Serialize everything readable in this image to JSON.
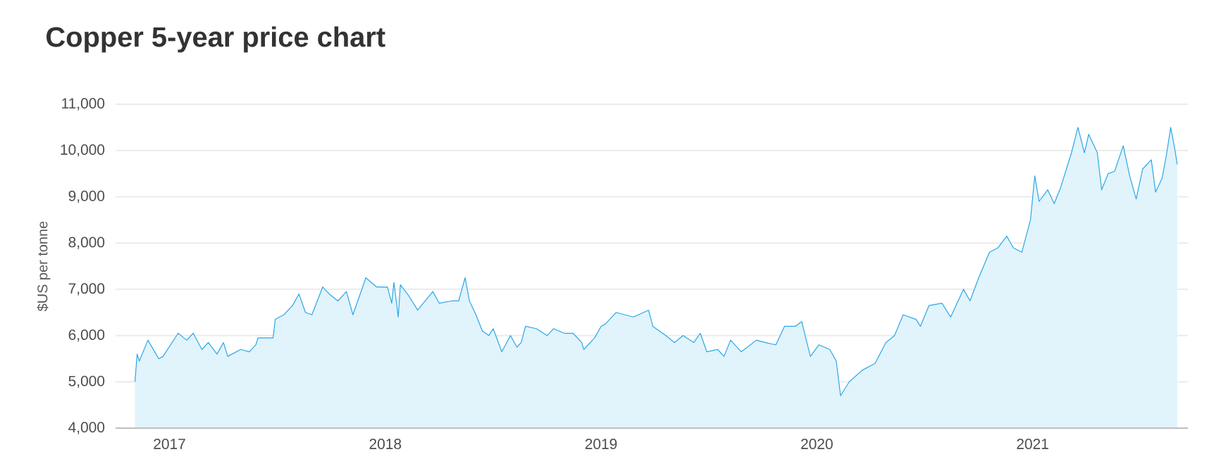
{
  "chart_data": {
    "type": "area",
    "title": "Copper 5-year price chart",
    "ylabel": "$US per tonne",
    "x": [
      2016.84,
      2016.85,
      2016.86,
      2016.9,
      2016.95,
      2016.97,
      2017.04,
      2017.08,
      2017.11,
      2017.15,
      2017.18,
      2017.22,
      2017.25,
      2017.27,
      2017.33,
      2017.37,
      2017.4,
      2017.41,
      2017.48,
      2017.49,
      2017.53,
      2017.57,
      2017.6,
      2017.63,
      2017.66,
      2017.71,
      2017.74,
      2017.78,
      2017.82,
      2017.85,
      2017.91,
      2017.96,
      2018.01,
      2018.03,
      2018.04,
      2018.06,
      2018.07,
      2018.11,
      2018.15,
      2018.22,
      2018.25,
      2018.31,
      2018.34,
      2018.37,
      2018.39,
      2018.42,
      2018.45,
      2018.48,
      2018.5,
      2018.54,
      2018.58,
      2018.61,
      2018.63,
      2018.65,
      2018.7,
      2018.75,
      2018.78,
      2018.83,
      2018.87,
      2018.91,
      2018.92,
      2018.97,
      2019.0,
      2019.02,
      2019.07,
      2019.11,
      2019.15,
      2019.22,
      2019.24,
      2019.3,
      2019.34,
      2019.38,
      2019.43,
      2019.46,
      2019.49,
      2019.54,
      2019.57,
      2019.6,
      2019.65,
      2019.72,
      2019.76,
      2019.81,
      2019.85,
      2019.9,
      2019.93,
      2019.97,
      2020.01,
      2020.06,
      2020.09,
      2020.11,
      2020.15,
      2020.21,
      2020.27,
      2020.32,
      2020.36,
      2020.4,
      2020.46,
      2020.48,
      2020.52,
      2020.58,
      2020.62,
      2020.68,
      2020.71,
      2020.75,
      2020.8,
      2020.84,
      2020.88,
      2020.91,
      2020.95,
      2020.99,
      2021.01,
      2021.03,
      2021.07,
      2021.1,
      2021.13,
      2021.18,
      2021.21,
      2021.24,
      2021.26,
      2021.3,
      2021.32,
      2021.35,
      2021.38,
      2021.42,
      2021.45,
      2021.48,
      2021.51,
      2021.55,
      2021.57,
      2021.6,
      2021.62,
      2021.64,
      2021.66,
      2021.67
    ],
    "series": [
      {
        "color": "#2aa7e6",
        "values": [
          5000,
          5600,
          5450,
          5900,
          5500,
          5550,
          6050,
          5900,
          6050,
          5700,
          5850,
          5600,
          5850,
          5550,
          5700,
          5650,
          5800,
          5950,
          5950,
          6350,
          6450,
          6650,
          6900,
          6500,
          6450,
          7050,
          6900,
          6750,
          6950,
          6450,
          7250,
          7050,
          7050,
          6700,
          7150,
          6400,
          7100,
          6850,
          6550,
          6950,
          6700,
          6750,
          6750,
          7250,
          6750,
          6450,
          6100,
          6000,
          6150,
          5650,
          6000,
          5750,
          5850,
          6200,
          6150,
          6000,
          6150,
          6050,
          6050,
          5850,
          5700,
          5950,
          6200,
          6250,
          6500,
          6450,
          6400,
          6550,
          6200,
          6000,
          5850,
          6000,
          5850,
          6050,
          5650,
          5700,
          5550,
          5900,
          5650,
          5900,
          5850,
          5800,
          6200,
          6200,
          6300,
          5550,
          5800,
          5700,
          5450,
          4700,
          5000,
          5250,
          5400,
          5850,
          6000,
          6450,
          6350,
          6200,
          6650,
          6700,
          6400,
          7000,
          6750,
          7250,
          7800,
          7900,
          8150,
          7900,
          7800,
          8500,
          9450,
          8900,
          9150,
          8850,
          9200,
          9950,
          10500,
          9950,
          10350,
          9950,
          9150,
          9500,
          9550,
          10100,
          9450,
          8950,
          9600,
          9800,
          9100,
          9400,
          9900,
          10500,
          10000,
          9700
        ]
      }
    ],
    "xlim": [
      2016.75,
      2021.72
    ],
    "xticks": [
      2017,
      2018,
      2019,
      2020,
      2021
    ],
    "ylim": [
      4000,
      11000
    ],
    "yticks": [
      {
        "value": 4000,
        "label": "4,000"
      },
      {
        "value": 5000,
        "label": "5,000"
      },
      {
        "value": 6000,
        "label": "6,000"
      },
      {
        "value": 7000,
        "label": "7,000"
      },
      {
        "value": 8000,
        "label": "8,000"
      },
      {
        "value": 9000,
        "label": "9,000"
      },
      {
        "value": 10000,
        "label": "10,000"
      },
      {
        "value": 11000,
        "label": "11,000"
      }
    ],
    "grid": "y"
  }
}
